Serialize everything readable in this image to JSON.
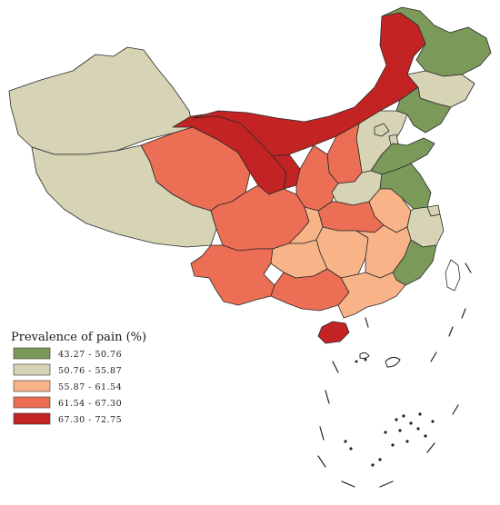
{
  "legend": {
    "title": "Prevalence of pain (%)",
    "classes": [
      {
        "label": "43.27 - 50.76",
        "color": "#7b9a5a"
      },
      {
        "label": "50.76 - 55.87",
        "color": "#d7d3b5"
      },
      {
        "label": "55.87 - 61.54",
        "color": "#f8b488"
      },
      {
        "label": "61.54 - 67.30",
        "color": "#ec6e55"
      },
      {
        "label": "67.30 - 72.75",
        "color": "#c42323"
      }
    ]
  },
  "regions": [
    {
      "id": "heilongjiang",
      "class": 0
    },
    {
      "id": "jilin",
      "class": 1
    },
    {
      "id": "liaoning",
      "class": 0
    },
    {
      "id": "inner-mongolia",
      "class": 4
    },
    {
      "id": "xinjiang",
      "class": 1
    },
    {
      "id": "tibet",
      "class": 1
    },
    {
      "id": "qinghai",
      "class": 3
    },
    {
      "id": "gansu",
      "class": 4
    },
    {
      "id": "ningxia",
      "class": 4
    },
    {
      "id": "shaanxi",
      "class": 3
    },
    {
      "id": "shanxi",
      "class": 3
    },
    {
      "id": "hebei",
      "class": 1
    },
    {
      "id": "beijing",
      "class": 1
    },
    {
      "id": "tianjin",
      "class": 1
    },
    {
      "id": "shandong",
      "class": 0
    },
    {
      "id": "henan",
      "class": 1
    },
    {
      "id": "jiangsu",
      "class": 0
    },
    {
      "id": "shanghai",
      "class": 1
    },
    {
      "id": "anhui",
      "class": 2
    },
    {
      "id": "hubei",
      "class": 3
    },
    {
      "id": "zhejiang",
      "class": 1
    },
    {
      "id": "sichuan",
      "class": 3
    },
    {
      "id": "chongqing",
      "class": 2
    },
    {
      "id": "hunan",
      "class": 2
    },
    {
      "id": "jiangxi",
      "class": 2
    },
    {
      "id": "fujian",
      "class": 0
    },
    {
      "id": "yunnan",
      "class": 3
    },
    {
      "id": "guizhou",
      "class": 2
    },
    {
      "id": "guangxi",
      "class": 3
    },
    {
      "id": "guangdong",
      "class": 2
    },
    {
      "id": "hainan",
      "class": 4
    },
    {
      "id": "taiwan",
      "class": 5
    }
  ]
}
